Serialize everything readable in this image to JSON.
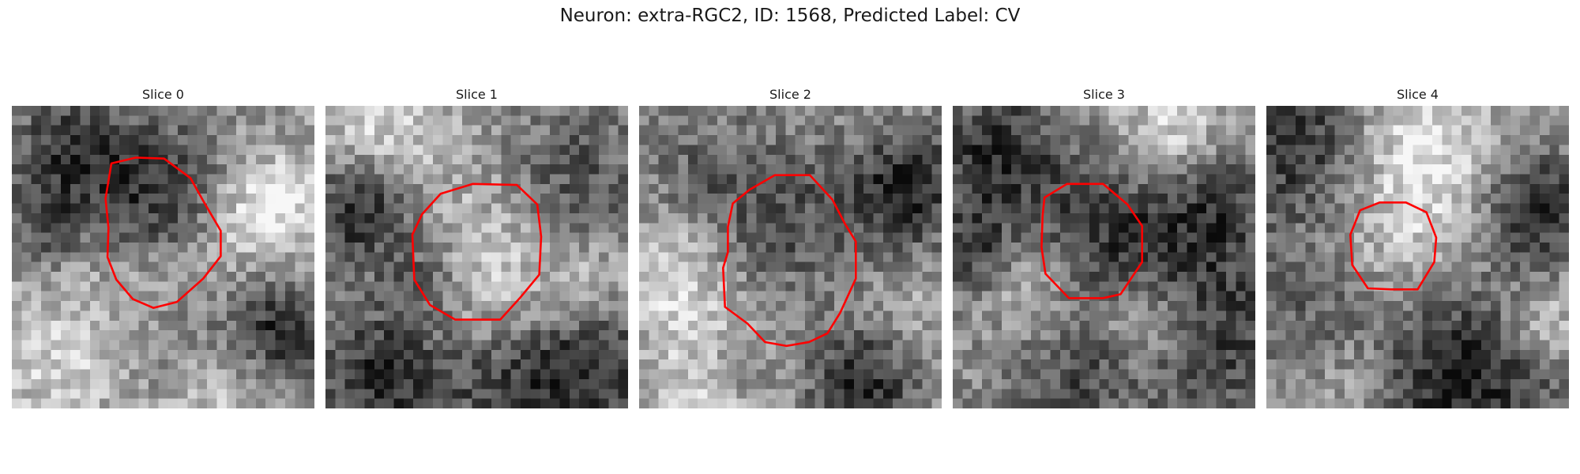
{
  "figure": {
    "title": "Neuron: extra-RGC2, ID: 1568, Predicted Label: CV"
  },
  "contour_color": "#ff0000",
  "colormap": "grayscale",
  "slices": [
    {
      "title": "Slice 0"
    },
    {
      "title": "Slice 1"
    },
    {
      "title": "Slice 2"
    },
    {
      "title": "Slice 3"
    },
    {
      "title": "Slice 4"
    }
  ]
}
